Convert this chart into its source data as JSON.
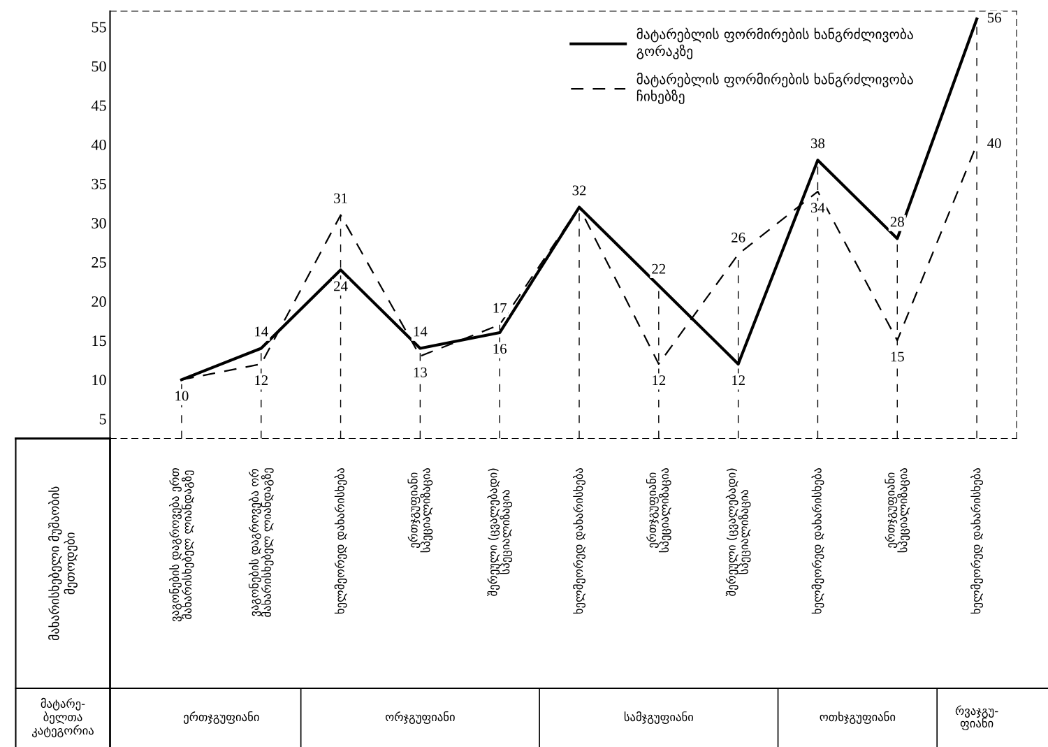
{
  "chart_data": {
    "type": "line",
    "categories": [
      "ვაგონების დაგროვება ერთ\nმახარისხებელ ლიანდაგზე",
      "ვაგონების დაგროვება ორ\nმახარისხებელ ლიანდაგზე",
      "ხელმეორედ დახარისხება",
      "ერთჯგუფიანი\nსპეციალიზაცია",
      "შერეული (ცვალებადი)\nსპეციალიზაცია",
      "ხელმეორედ დახარისხება",
      "ერთჯგუფიანი\nსპეციალიზაცია",
      "შერეული (ცვალებადი)\nსპეციალიზაცია",
      "ხელმეორედ დახარისხება",
      "ერთჯგუფიანი\nსპეციალიზაცია",
      "ხელმეორედ დახარისხება"
    ],
    "series": [
      {
        "name": "მატარებლის ფორმირების ხანგრძლივობა\nგორაკზე",
        "color": "#000000",
        "line_style": "solid",
        "values": [
          10,
          14,
          24,
          14,
          16,
          32,
          22,
          12,
          38,
          28,
          56
        ],
        "value_labels": [
          "10",
          "14",
          "24",
          "14",
          "16",
          "32",
          "22",
          "12",
          "38",
          "28",
          "56"
        ]
      },
      {
        "name": "მატარებლის ფორმირების ხანგრძლივობა\nჩიხებზე",
        "color": "#000000",
        "line_style": "dashed",
        "values": [
          10,
          12,
          31,
          13,
          17,
          32,
          12,
          26,
          34,
          15,
          40
        ],
        "value_labels": [
          null,
          "12",
          "31",
          "13",
          "17",
          null,
          "12",
          "26",
          "34",
          "15",
          "40"
        ]
      }
    ],
    "ylim": [
      2.5,
      57
    ],
    "yticks": [
      5,
      10,
      15,
      20,
      25,
      30,
      35,
      40,
      45,
      50,
      55
    ],
    "grid": "x",
    "legend": "top right",
    "marker": "none",
    "annotations": [
      "მახარისხებელი მუშაობის\nმეთოდები",
      "მატარე-\nბელთა\nკატეგორია",
      "ერთჯგუფიანი",
      "ორჯგუფიანი",
      "სამჯგუფიანი",
      "ოთხჯგუფიანი",
      "რვაჯგუ-\nფიანი"
    ]
  }
}
